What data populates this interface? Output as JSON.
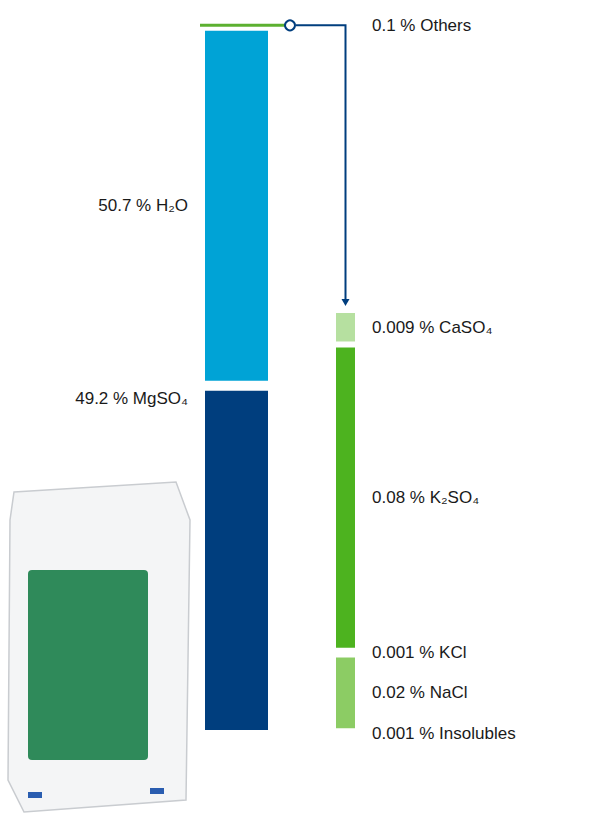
{
  "chart_data": [
    {
      "type": "bar",
      "stacked": true,
      "tick_labels": false,
      "grid": false,
      "data_labels": true,
      "ylim": [
        0,
        100
      ],
      "series": [
        {
          "name": "Others",
          "color": "#5cb030",
          "values": [
            0.1
          ],
          "value_labels": [
            "0.1 % Others"
          ]
        },
        {
          "name": "H₂O",
          "color": "#00a3d6",
          "values": [
            50.7
          ],
          "value_labels": [
            "50.7 % H₂O"
          ]
        },
        {
          "name": "MgSO₄",
          "color": "#003e7e",
          "values": [
            49.2
          ],
          "value_labels": [
            "49.2 % MgSO₄"
          ]
        }
      ]
    },
    {
      "type": "bar",
      "stacked": true,
      "tick_labels": false,
      "grid": false,
      "data_labels": true,
      "ylim": [
        0,
        0.111
      ],
      "series": [
        {
          "name": "CaSO₄",
          "color": "#b6e0a0",
          "values": [
            0.009
          ],
          "value_labels": [
            "0.009 % CaSO₄"
          ]
        },
        {
          "name": "K₂SO₄",
          "color": "#4db31f",
          "values": [
            0.08
          ],
          "value_labels": [
            "0.08 % K₂SO₄"
          ]
        },
        {
          "name": "KCl",
          "color": "#dcefcf",
          "values": [
            0.001
          ],
          "value_labels": [
            "0.001 % KCl"
          ]
        },
        {
          "name": "NaCl",
          "color": "#8ccc64",
          "values": [
            0.02
          ],
          "value_labels": [
            "0.02 % NaCl"
          ]
        },
        {
          "name": "Insolubles",
          "color": "#dcefcf",
          "values": [
            0.001
          ],
          "value_labels": [
            "0.001 % Insolubles"
          ]
        }
      ]
    }
  ]
}
